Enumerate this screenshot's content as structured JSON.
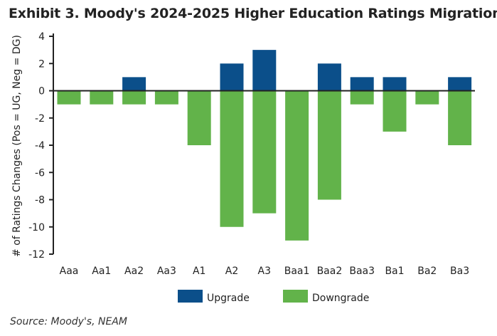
{
  "chart_data": {
    "type": "bar",
    "stacked": true,
    "title": "Exhibit 3. Moody's 2024-2025 Higher Education Ratings Migration",
    "ylabel": "# of Ratings Changes (Pos = UG, Neg = DG)",
    "xlabel": "",
    "ylim": [
      -12,
      4
    ],
    "yticks": [
      4,
      2,
      0,
      -2,
      -4,
      -6,
      -8,
      -10,
      -12
    ],
    "categories": [
      "Aaa",
      "Aa1",
      "Aa2",
      "Aa3",
      "A1",
      "A2",
      "A3",
      "Baa1",
      "Baa2",
      "Baa3",
      "Ba1",
      "Ba2",
      "Ba3"
    ],
    "series": [
      {
        "name": "Upgrade",
        "color": "#0b4f8a",
        "values": [
          0,
          0,
          1,
          0,
          0,
          2,
          3,
          0,
          2,
          1,
          1,
          0,
          1
        ]
      },
      {
        "name": "Downgrade",
        "color": "#62b34a",
        "values": [
          -1,
          -1,
          -1,
          -1,
          -4,
          -10,
          -9,
          -11,
          -8,
          -1,
          -3,
          -1,
          -4
        ]
      }
    ],
    "legend": "bottom",
    "grid": false
  },
  "source": "Source: Moody's, NEAM"
}
